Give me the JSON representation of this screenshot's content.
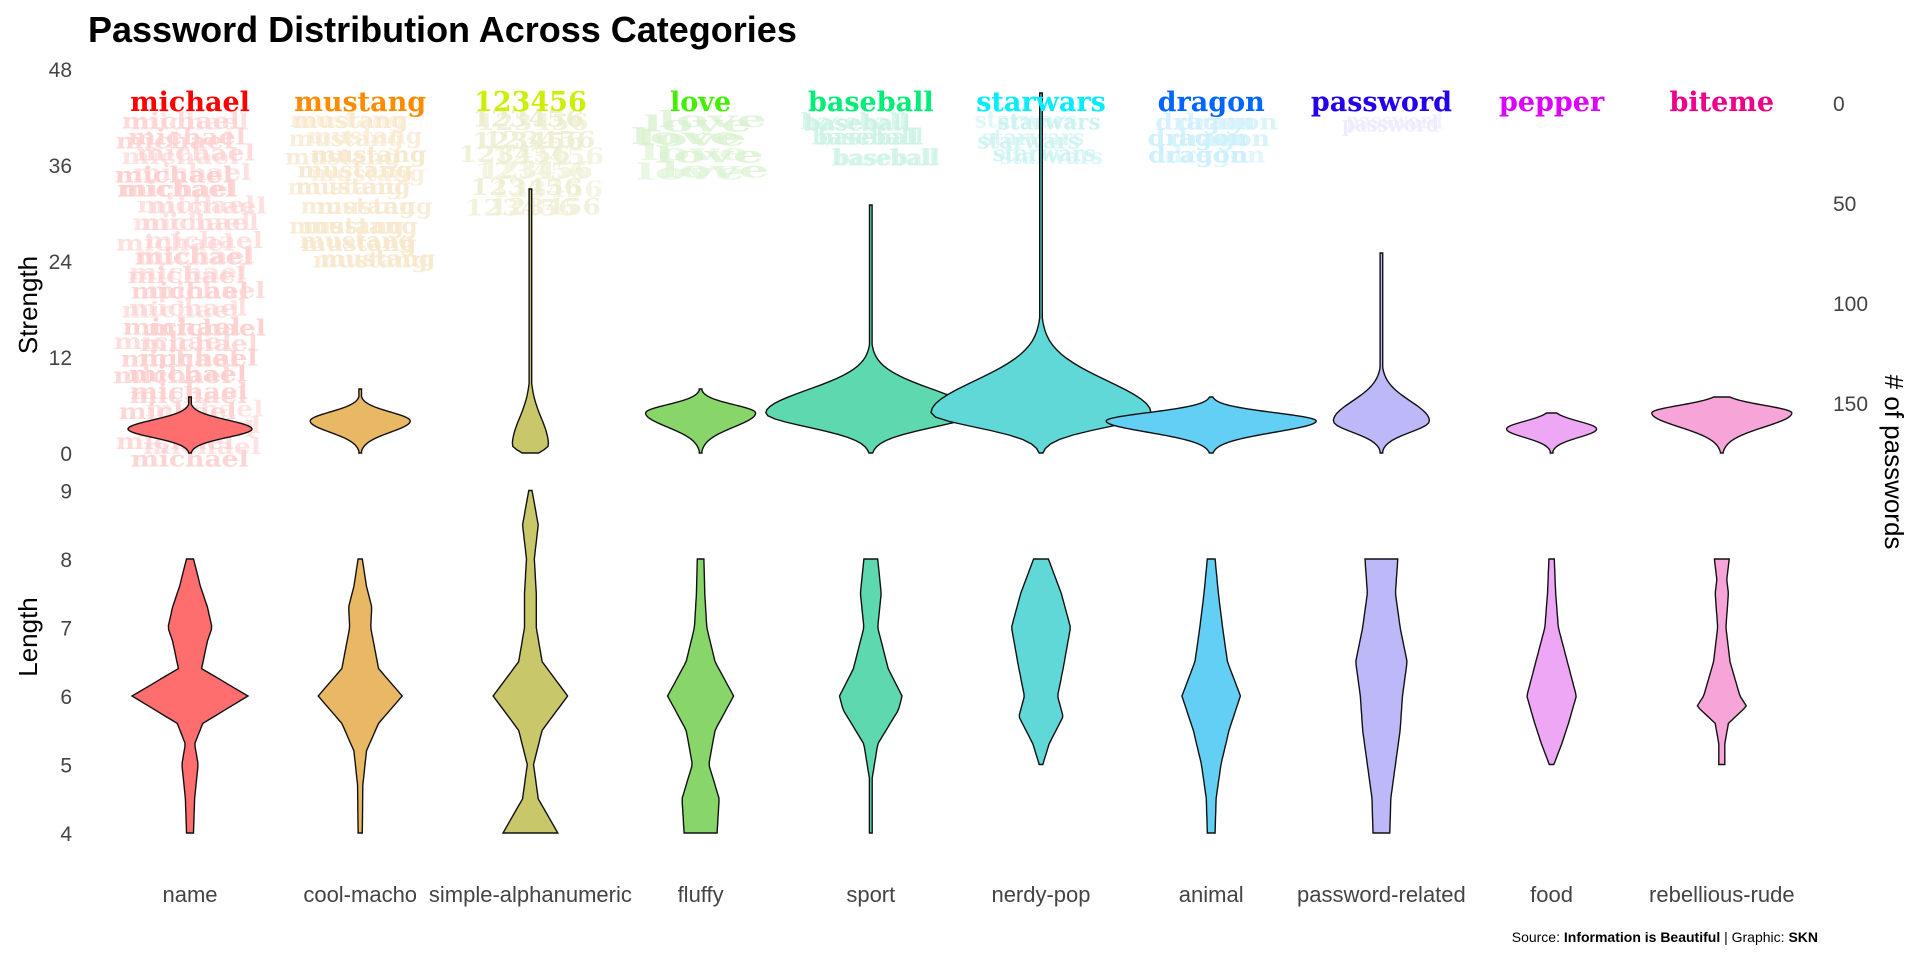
{
  "chart_data": {
    "type": "violin",
    "title": "Password Distribution Across Categories",
    "left_axis_labels": {
      "strength": "Strength",
      "length": "Length"
    },
    "right_axis_label": "# of passwords",
    "strength_ticks": [
      0,
      12,
      24,
      36,
      48
    ],
    "length_ticks": [
      4,
      5,
      6,
      7,
      8,
      9
    ],
    "count_ticks": [
      0,
      50,
      100,
      150
    ],
    "source": {
      "prefix": "Source: ",
      "source_name": "Information is Beautiful",
      "separator": " | Graphic: ",
      "author": "SKN"
    },
    "categories": [
      {
        "name": "name",
        "top_password": "michael",
        "color": "#FF6E6E",
        "top_color": "#FF0000",
        "count": 183,
        "strength": {
          "min": 0,
          "max": 7,
          "mode": 3,
          "maxw": 62
        },
        "length_profile": [
          [
            4,
            6
          ],
          [
            4.5,
            8
          ],
          [
            5,
            14
          ],
          [
            5.3,
            8
          ],
          [
            5.6,
            22
          ],
          [
            6,
            100
          ],
          [
            6.4,
            20
          ],
          [
            6.8,
            30
          ],
          [
            7,
            38
          ],
          [
            7.3,
            30
          ],
          [
            7.6,
            18
          ],
          [
            8,
            6
          ]
        ]
      },
      {
        "name": "cool-macho",
        "top_password": "mustang",
        "color": "#E8B864",
        "top_color": "#FF8C00",
        "count": 80,
        "strength": {
          "min": 0,
          "max": 8,
          "mode": 4,
          "maxw": 50
        },
        "length_profile": [
          [
            4,
            4
          ],
          [
            4.7,
            5
          ],
          [
            5.2,
            12
          ],
          [
            5.6,
            35
          ],
          [
            6,
            80
          ],
          [
            6.4,
            35
          ],
          [
            7,
            20
          ],
          [
            7.3,
            22
          ],
          [
            7.6,
            12
          ],
          [
            8,
            4
          ]
        ]
      },
      {
        "name": "simple-alphanumeric",
        "top_password": "123456",
        "color": "#C8C86A",
        "top_color": "#CCEE00",
        "count": 61,
        "strength": {
          "min": 0,
          "max": 33,
          "mode": 1,
          "maxw": 18
        },
        "length_profile": [
          [
            4,
            70
          ],
          [
            4.5,
            20
          ],
          [
            5,
            8
          ],
          [
            5.5,
            30
          ],
          [
            6,
            95
          ],
          [
            6.5,
            30
          ],
          [
            7,
            15
          ],
          [
            7.5,
            15
          ],
          [
            8,
            10
          ],
          [
            8.5,
            20
          ],
          [
            9,
            4
          ]
        ]
      },
      {
        "name": "fluffy",
        "top_password": "love",
        "color": "#88D66A",
        "top_color": "#44EE00",
        "count": 44,
        "strength": {
          "min": 0,
          "max": 8,
          "mode": 5,
          "maxw": 55
        },
        "length_profile": [
          [
            4,
            40
          ],
          [
            4.5,
            45
          ],
          [
            5,
            20
          ],
          [
            5.5,
            35
          ],
          [
            6,
            80
          ],
          [
            6.5,
            35
          ],
          [
            7,
            15
          ],
          [
            7.5,
            10
          ],
          [
            8,
            8
          ]
        ]
      },
      {
        "name": "sport",
        "top_password": "baseball",
        "color": "#5ED8AE",
        "top_color": "#00EE77",
        "count": 37,
        "strength": {
          "min": 0,
          "max": 31,
          "mode": 5,
          "maxw": 105
        },
        "length_profile": [
          [
            4,
            4
          ],
          [
            4.8,
            4
          ],
          [
            5.3,
            20
          ],
          [
            5.8,
            80
          ],
          [
            6,
            90
          ],
          [
            6.4,
            50
          ],
          [
            7,
            20
          ],
          [
            7.5,
            30
          ],
          [
            8,
            20
          ]
        ]
      },
      {
        "name": "nerdy-pop",
        "top_password": "starwars",
        "color": "#60D8D8",
        "top_color": "#00EEFF",
        "count": 30,
        "strength": {
          "min": 0,
          "max": 45,
          "mode": 5,
          "maxw": 110
        },
        "length_profile": [
          [
            5,
            5
          ],
          [
            5.3,
            22
          ],
          [
            5.7,
            60
          ],
          [
            6,
            45
          ],
          [
            6.4,
            60
          ],
          [
            7,
            80
          ],
          [
            7.5,
            55
          ],
          [
            8,
            20
          ]
        ]
      },
      {
        "name": "animal",
        "top_password": "dragon",
        "color": "#63CFF5",
        "top_color": "#0066FF",
        "count": 29,
        "strength": {
          "min": 0,
          "max": 7,
          "mode": 4,
          "maxw": 105
        },
        "length_profile": [
          [
            4,
            12
          ],
          [
            4.5,
            15
          ],
          [
            5,
            30
          ],
          [
            5.5,
            55
          ],
          [
            6,
            90
          ],
          [
            6.5,
            50
          ],
          [
            7,
            35
          ],
          [
            7.5,
            22
          ],
          [
            8,
            12
          ]
        ]
      },
      {
        "name": "password-related",
        "top_password": "password",
        "color": "#BDB8F8",
        "top_color": "#2200EE",
        "count": 15,
        "strength": {
          "min": 0,
          "max": 25,
          "mode": 4,
          "maxw": 48
        },
        "length_profile": [
          [
            4,
            18
          ],
          [
            4.5,
            20
          ],
          [
            5,
            30
          ],
          [
            5.5,
            40
          ],
          [
            6,
            45
          ],
          [
            6.5,
            55
          ],
          [
            7,
            40
          ],
          [
            7.5,
            30
          ],
          [
            8,
            35
          ]
        ]
      },
      {
        "name": "food",
        "top_password": "pepper",
        "color": "#EDA7F5",
        "top_color": "#DD00FF",
        "count": 11,
        "strength": {
          "min": 0,
          "max": 5,
          "mode": 3,
          "maxw": 45
        },
        "length_profile": [
          [
            5,
            10
          ],
          [
            5.3,
            45
          ],
          [
            5.6,
            75
          ],
          [
            6,
            110
          ],
          [
            6.5,
            70
          ],
          [
            7,
            30
          ],
          [
            7.5,
            18
          ],
          [
            8,
            12
          ]
        ]
      },
      {
        "name": "rebellious-rude",
        "top_password": "biteme",
        "color": "#F7A5D8",
        "top_color": "#EE0088",
        "count": 11,
        "strength": {
          "min": 0,
          "max": 7,
          "mode": 5,
          "maxw": 70
        },
        "length_profile": [
          [
            5,
            18
          ],
          [
            5.3,
            18
          ],
          [
            5.6,
            40
          ],
          [
            5.85,
            150
          ],
          [
            6,
            110
          ],
          [
            6.5,
            50
          ],
          [
            7,
            25
          ],
          [
            7.5,
            40
          ],
          [
            7.7,
            30
          ],
          [
            8,
            45
          ]
        ]
      }
    ]
  }
}
